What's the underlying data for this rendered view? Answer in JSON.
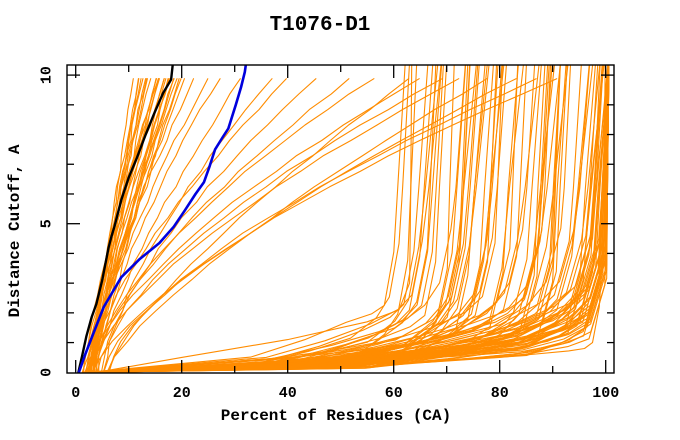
{
  "page": {
    "background": "#ffffff"
  },
  "chart_data": {
    "type": "line",
    "title": "T1076-D1",
    "xlabel": "Percent of Residues (CA)",
    "ylabel": "Distance Cutoff, A",
    "xlim": [
      -1.64,
      101.57
    ],
    "ylim": [
      0,
      10.34
    ],
    "x_major_ticks": [
      0,
      20,
      40,
      60,
      80,
      100
    ],
    "x_minor_ticks": [
      10,
      30,
      50,
      70,
      90
    ],
    "y_major_ticks": [
      0,
      5,
      10
    ],
    "y_minor_ticks": [
      1,
      2,
      3,
      4,
      6,
      7,
      8,
      9
    ],
    "grid": false,
    "legend": "none",
    "axis_color": "#000000",
    "background_color": "#ffffff",
    "series": [
      {
        "name": "model-highlight-black",
        "color": "#000000",
        "width": 2.4,
        "points": [
          [
            0.5,
            0
          ],
          [
            1.2,
            0.55
          ],
          [
            2,
            1.2
          ],
          [
            3,
            1.85
          ],
          [
            3.9,
            2.3
          ],
          [
            5,
            3.1
          ],
          [
            6.2,
            4.2
          ],
          [
            6.8,
            4.6
          ],
          [
            7.3,
            4.9
          ],
          [
            8.6,
            5.8
          ],
          [
            10,
            6.55
          ],
          [
            11.5,
            7.2
          ],
          [
            13.2,
            8.0
          ],
          [
            14.8,
            8.7
          ],
          [
            16.5,
            9.4
          ],
          [
            18,
            9.85
          ],
          [
            18.3,
            10.34
          ]
        ]
      },
      {
        "name": "model-highlight-blue",
        "color": "#0000dd",
        "width": 2.6,
        "points": [
          [
            0.6,
            0
          ],
          [
            1.8,
            0.6
          ],
          [
            3.1,
            1.2
          ],
          [
            5.3,
            2.2
          ],
          [
            8.6,
            3.2
          ],
          [
            12,
            3.8
          ],
          [
            15.8,
            4.35
          ],
          [
            18.5,
            4.9
          ],
          [
            20.6,
            5.45
          ],
          [
            22.6,
            6.0
          ],
          [
            24.2,
            6.4
          ],
          [
            25.2,
            6.9
          ],
          [
            26.3,
            7.5
          ],
          [
            27.7,
            7.9
          ],
          [
            28.8,
            8.2
          ],
          [
            30.2,
            9.0
          ],
          [
            31.2,
            9.6
          ],
          [
            31.9,
            10.1
          ],
          [
            32.1,
            10.34
          ]
        ]
      },
      {
        "name": "orange-low-outlier",
        "color": "#ff8c00",
        "width": 1.1,
        "points": [
          [
            3,
            0
          ],
          [
            30,
            0.16
          ],
          [
            66,
            0.33
          ],
          [
            80,
            0.5
          ],
          [
            93,
            0.72
          ],
          [
            96,
            0.8
          ],
          [
            97.5,
            1.0
          ],
          [
            98.8,
            2.2
          ],
          [
            99.4,
            4.0
          ],
          [
            99.7,
            7.0
          ],
          [
            99.9,
            10.34
          ]
        ]
      },
      {
        "name": "orange-vertical-line",
        "color": "#ff8c00",
        "width": 1.1,
        "points": [
          [
            4,
            0
          ],
          [
            20,
            0.5
          ],
          [
            40,
            1.1
          ],
          [
            55,
            1.7
          ],
          [
            61,
            2.1
          ],
          [
            63,
            3.0
          ],
          [
            63.2,
            6.0
          ],
          [
            63.4,
            10.34
          ]
        ]
      }
    ],
    "orange_prediction_families": {
      "color": "#ff8c00",
      "width": 1.1,
      "seed": 20,
      "left_cluster": {
        "count": 26,
        "x_start_range": [
          1.3,
          3.6
        ],
        "x_top_range": [
          11.5,
          21.5
        ],
        "exponent_range": [
          0.85,
          1.25
        ]
      },
      "mid_diagonals": {
        "x_top_list": [
          23.5,
          26,
          28.5,
          33,
          39,
          42.5,
          48,
          55,
          60,
          66.5,
          69.5,
          74,
          77,
          82,
          88,
          93,
          97
        ],
        "x_start_range": [
          2.2,
          6.2
        ],
        "exponent_range": [
          1.25,
          1.6
        ]
      },
      "right_mass": {
        "count": 95,
        "x_start_range": [
          1.5,
          6
        ],
        "knee_range": [
          59,
          100.2
        ],
        "knee_bias": 2.1,
        "top_exit_max": 100.6
      }
    }
  }
}
